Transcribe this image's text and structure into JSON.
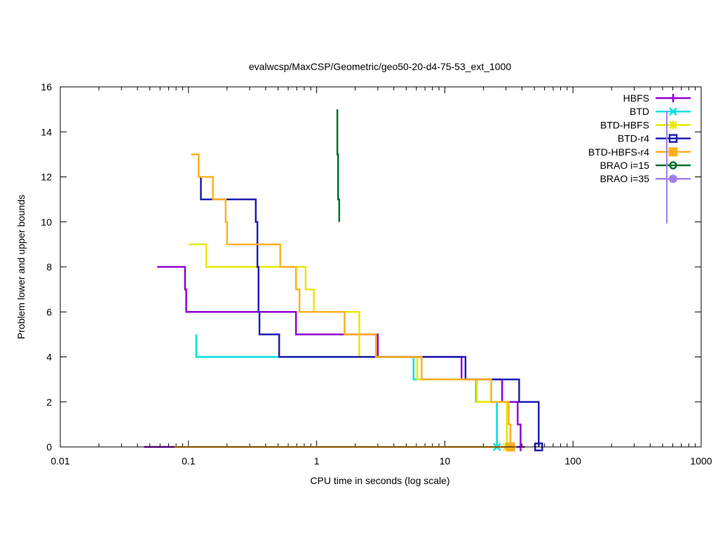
{
  "chart_data": {
    "type": "line",
    "title": "evalwcsp/MaxCSP/Geometric/geo50-20-d4-75-53_ext_1000",
    "xlabel": "CPU time in seconds (log scale)",
    "ylabel": "Problem lower and upper bounds",
    "xscale": "log",
    "xlim": [
      0.01,
      1000
    ],
    "ylim": [
      0,
      16
    ],
    "xticks": [
      {
        "value": 0.01,
        "label": "0.01"
      },
      {
        "value": 0.1,
        "label": "0.1"
      },
      {
        "value": 1,
        "label": "1"
      },
      {
        "value": 10,
        "label": "10"
      },
      {
        "value": 100,
        "label": "100"
      },
      {
        "value": 1000,
        "label": "1000"
      }
    ],
    "yticks": [
      {
        "value": 0,
        "label": "0"
      },
      {
        "value": 2,
        "label": "2"
      },
      {
        "value": 4,
        "label": "4"
      },
      {
        "value": 6,
        "label": "6"
      },
      {
        "value": 8,
        "label": "8"
      },
      {
        "value": 10,
        "label": "10"
      },
      {
        "value": 12,
        "label": "12"
      },
      {
        "value": 14,
        "label": "14"
      },
      {
        "value": 16,
        "label": "16"
      }
    ],
    "legend_position": "top-right",
    "series": [
      {
        "name": "HBFS",
        "color": "#9400d3",
        "marker": "plus",
        "upper": [
          [
            0.057,
            8
          ],
          [
            0.094,
            8
          ],
          [
            0.094,
            7
          ],
          [
            0.096,
            7
          ],
          [
            0.096,
            6
          ],
          [
            0.69,
            6
          ],
          [
            0.69,
            5
          ],
          [
            3.0,
            5
          ],
          [
            3.0,
            4
          ],
          [
            13.5,
            4
          ],
          [
            13.5,
            3
          ],
          [
            28.0,
            3
          ],
          [
            28.0,
            2
          ],
          [
            37.0,
            2
          ],
          [
            37.0,
            1
          ],
          [
            39.0,
            1
          ],
          [
            39.0,
            0
          ]
        ],
        "lower": [
          [
            0.045,
            0
          ],
          [
            0.078,
            0
          ]
        ],
        "end": [
          39.0,
          0
        ]
      },
      {
        "name": "BTD",
        "color": "#00e0e0",
        "marker": "x",
        "upper": [
          [
            0.115,
            5
          ],
          [
            0.115,
            4
          ],
          [
            5.7,
            4
          ],
          [
            5.7,
            3
          ],
          [
            17.5,
            3
          ],
          [
            17.5,
            2
          ],
          [
            25.5,
            2
          ],
          [
            25.5,
            0
          ]
        ],
        "lower": [],
        "end": [
          25.5,
          0
        ]
      },
      {
        "name": "BTD-HBFS",
        "color": "#e8e800",
        "marker": "star",
        "upper": [
          [
            0.1,
            9
          ],
          [
            0.138,
            9
          ],
          [
            0.138,
            8
          ],
          [
            0.82,
            8
          ],
          [
            0.82,
            7
          ],
          [
            0.95,
            7
          ],
          [
            0.95,
            6
          ],
          [
            2.15,
            6
          ],
          [
            2.15,
            4
          ],
          [
            6.1,
            4
          ],
          [
            6.1,
            3
          ],
          [
            17.8,
            3
          ],
          [
            17.8,
            2
          ],
          [
            30.5,
            2
          ],
          [
            30.5,
            0
          ]
        ],
        "lower": [],
        "end": [
          30.5,
          0
        ]
      },
      {
        "name": "BTD-r4",
        "color": "#1f1fb0",
        "marker": "square",
        "upper": [
          [
            0.125,
            12
          ],
          [
            0.125,
            11
          ],
          [
            0.335,
            11
          ],
          [
            0.335,
            10
          ],
          [
            0.345,
            10
          ],
          [
            0.345,
            8
          ],
          [
            0.352,
            8
          ],
          [
            0.352,
            6
          ],
          [
            0.358,
            6
          ],
          [
            0.358,
            5
          ],
          [
            0.51,
            5
          ],
          [
            0.51,
            4
          ],
          [
            14.5,
            4
          ],
          [
            14.5,
            3
          ],
          [
            38.0,
            3
          ],
          [
            38.0,
            2
          ],
          [
            54.0,
            2
          ],
          [
            54.0,
            0
          ]
        ],
        "lower": [],
        "end": [
          54.0,
          0
        ]
      },
      {
        "name": "BTD-HBFS-r4",
        "color": "#ffb020",
        "marker": "filled-square",
        "upper": [
          [
            0.105,
            13
          ],
          [
            0.12,
            13
          ],
          [
            0.12,
            12
          ],
          [
            0.155,
            12
          ],
          [
            0.155,
            11
          ],
          [
            0.195,
            11
          ],
          [
            0.195,
            10
          ],
          [
            0.2,
            10
          ],
          [
            0.2,
            9
          ],
          [
            0.52,
            9
          ],
          [
            0.52,
            8
          ],
          [
            0.69,
            8
          ],
          [
            0.69,
            7
          ],
          [
            0.735,
            7
          ],
          [
            0.735,
            6
          ],
          [
            1.65,
            6
          ],
          [
            1.65,
            5
          ],
          [
            2.9,
            5
          ],
          [
            2.9,
            4
          ],
          [
            6.6,
            4
          ],
          [
            6.6,
            3
          ],
          [
            23.0,
            3
          ],
          [
            23.0,
            2
          ],
          [
            31.5,
            2
          ],
          [
            31.5,
            1
          ],
          [
            32.5,
            1
          ],
          [
            32.5,
            0
          ]
        ],
        "lower": [
          [
            0.078,
            0
          ],
          [
            33.0,
            0
          ]
        ],
        "end": [
          32.5,
          0
        ]
      },
      {
        "name": "BRAO i=15",
        "color": "#007030",
        "marker": "circle",
        "upper": [
          [
            1.45,
            15
          ],
          [
            1.45,
            13
          ],
          [
            1.47,
            13
          ],
          [
            1.47,
            11
          ],
          [
            1.5,
            11
          ],
          [
            1.5,
            10
          ]
        ],
        "lower": [],
        "end": null
      },
      {
        "name": "BRAO i=35",
        "color": "#a080f0",
        "marker": "filled-circle",
        "upper": [],
        "lower": [],
        "end": null
      }
    ]
  }
}
